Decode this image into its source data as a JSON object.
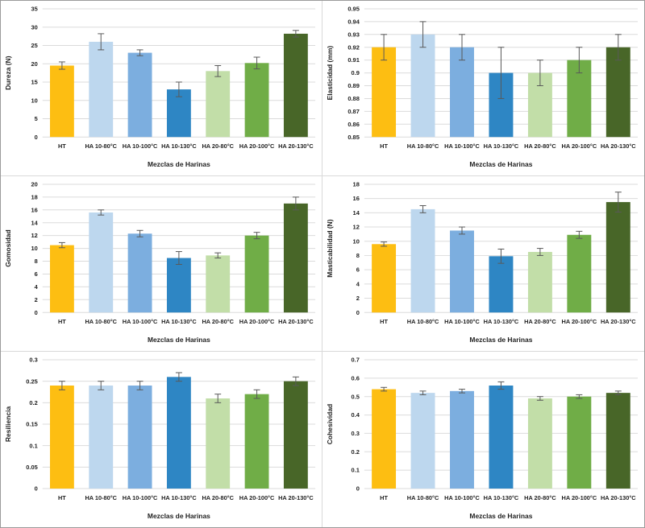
{
  "figure": {
    "xlabel": "Mezclas de Harinas",
    "categories": [
      "HT",
      "HA 10-80°C",
      "HA 10-100°C",
      "HA 10-130°C",
      "HA 20-80°C",
      "HA 20-100°C",
      "HA 20-130°C"
    ]
  },
  "palette": {
    "bar_colors": [
      "#FDBE12",
      "#BDD7EE",
      "#7CAEDF",
      "#2E86C4",
      "#C2DEA8",
      "#70AD47",
      "#486628"
    ],
    "error_bar_color": "#595959",
    "gridline_color": "#dbdbdb",
    "text_color": "#1f1f1f"
  },
  "chart_data": [
    {
      "type": "bar",
      "name": "dureza",
      "ylabel": "Dureza (N)",
      "xlabel": "Mezclas de Harinas",
      "categories": [
        "HT",
        "HA 10-80°C",
        "HA 10-100°C",
        "HA 10-130°C",
        "HA 20-80°C",
        "HA 20-100°C",
        "HA 20-130°C"
      ],
      "values": [
        19.5,
        26.0,
        23.0,
        13.0,
        18.0,
        20.2,
        28.2
      ],
      "errors": [
        1.0,
        2.2,
        0.8,
        2.0,
        1.5,
        1.6,
        0.9
      ],
      "ylim": [
        0,
        35
      ],
      "ytick_values": [
        0,
        5,
        10,
        15,
        20,
        25,
        30,
        35
      ],
      "ytick_labels": [
        "0",
        "5",
        "10",
        "15",
        "20",
        "25",
        "30",
        "35"
      ],
      "grid": true,
      "legend": "none"
    },
    {
      "type": "bar",
      "name": "elasticidad",
      "ylabel": "Elasticidad (mm)",
      "xlabel": "Mezclas de Harinas",
      "categories": [
        "HT",
        "HA 10-80°C",
        "HA 10-100°C",
        "HA 10-130°C",
        "HA 20-80°C",
        "HA 20-100°C",
        "HA 20-130°C"
      ],
      "values": [
        0.92,
        0.93,
        0.92,
        0.9,
        0.9,
        0.91,
        0.92
      ],
      "errors": [
        0.01,
        0.01,
        0.01,
        0.02,
        0.01,
        0.01,
        0.01
      ],
      "ylim": [
        0.85,
        0.95
      ],
      "ytick_values": [
        0.85,
        0.86,
        0.87,
        0.88,
        0.89,
        0.9,
        0.91,
        0.92,
        0.93,
        0.94,
        0.95
      ],
      "ytick_labels": [
        "0.85",
        "0.86",
        "0.87",
        "0.88",
        "0.89",
        "0.9",
        "0.91",
        "0.92",
        "0.93",
        "0.94",
        "0.95"
      ],
      "grid": true,
      "legend": "none"
    },
    {
      "type": "bar",
      "name": "gomosidad",
      "ylabel": "Gomosidad",
      "xlabel": "Mezclas de Harinas",
      "categories": [
        "HT",
        "HA 10-80°C",
        "HA 10-100°C",
        "HA 10-130°C",
        "HA 20-80°C",
        "HA 20-100°C",
        "HA 20-130°C"
      ],
      "values": [
        10.5,
        15.6,
        12.3,
        8.5,
        8.9,
        12.0,
        17.0
      ],
      "errors": [
        0.4,
        0.4,
        0.5,
        1.0,
        0.4,
        0.5,
        1.0
      ],
      "ylim": [
        0,
        20
      ],
      "ytick_values": [
        0,
        2,
        4,
        6,
        8,
        10,
        12,
        14,
        16,
        18,
        20
      ],
      "ytick_labels": [
        "0",
        "2",
        "4",
        "6",
        "8",
        "10",
        "12",
        "14",
        "16",
        "18",
        "20"
      ],
      "grid": true,
      "legend": "none"
    },
    {
      "type": "bar",
      "name": "masticabilidad",
      "ylabel": "Masticabilidad (N)",
      "xlabel": "Mezclas de Harinas",
      "categories": [
        "HT",
        "HA 10-80°C",
        "HA 10-100°C",
        "HA 10-130°C",
        "HA 20-80°C",
        "HA 20-100°C",
        "HA 20-130°C"
      ],
      "values": [
        9.6,
        14.5,
        11.5,
        7.9,
        8.5,
        10.9,
        15.5
      ],
      "errors": [
        0.3,
        0.5,
        0.5,
        1.0,
        0.5,
        0.5,
        1.4
      ],
      "ylim": [
        0,
        18
      ],
      "ytick_values": [
        0,
        2,
        4,
        6,
        8,
        10,
        12,
        14,
        16,
        18
      ],
      "ytick_labels": [
        "0",
        "2",
        "4",
        "6",
        "8",
        "10",
        "12",
        "14",
        "16",
        "18"
      ],
      "grid": true,
      "legend": "none"
    },
    {
      "type": "bar",
      "name": "resiliencia",
      "ylabel": "Resiliencia",
      "xlabel": "Mezclas de Harinas",
      "categories": [
        "HT",
        "HA 10-80°C",
        "HA 10-100°C",
        "HA 10-130°C",
        "HA 20-80°C",
        "HA 20-100°C",
        "HA 20-130°C"
      ],
      "values": [
        0.24,
        0.24,
        0.24,
        0.26,
        0.21,
        0.22,
        0.25
      ],
      "errors": [
        0.01,
        0.01,
        0.01,
        0.01,
        0.01,
        0.01,
        0.01
      ],
      "ylim": [
        0,
        0.3
      ],
      "ytick_values": [
        0,
        0.05,
        0.1,
        0.15,
        0.2,
        0.25,
        0.3
      ],
      "ytick_labels": [
        "0",
        "0.05",
        "0.1",
        "0.15",
        "0.2",
        "0.25",
        "0.3"
      ],
      "grid": true,
      "legend": "none"
    },
    {
      "type": "bar",
      "name": "cohesividad",
      "ylabel": "Cohesividad",
      "xlabel": "Mezclas de Harinas",
      "categories": [
        "HT",
        "HA 10-80°C",
        "HA 10-100°C",
        "HA 10-130°C",
        "HA 20-80°C",
        "HA 20-100°C",
        "HA 20-130°C"
      ],
      "values": [
        0.54,
        0.52,
        0.53,
        0.56,
        0.49,
        0.5,
        0.52
      ],
      "errors": [
        0.01,
        0.01,
        0.01,
        0.02,
        0.01,
        0.01,
        0.01
      ],
      "ylim": [
        0,
        0.7
      ],
      "ytick_values": [
        0,
        0.1,
        0.2,
        0.3,
        0.4,
        0.5,
        0.6,
        0.7
      ],
      "ytick_labels": [
        "0",
        "0.1",
        "0.2",
        "0.3",
        "0.4",
        "0.5",
        "0.6",
        "0.7"
      ],
      "grid": true,
      "legend": "none"
    }
  ]
}
